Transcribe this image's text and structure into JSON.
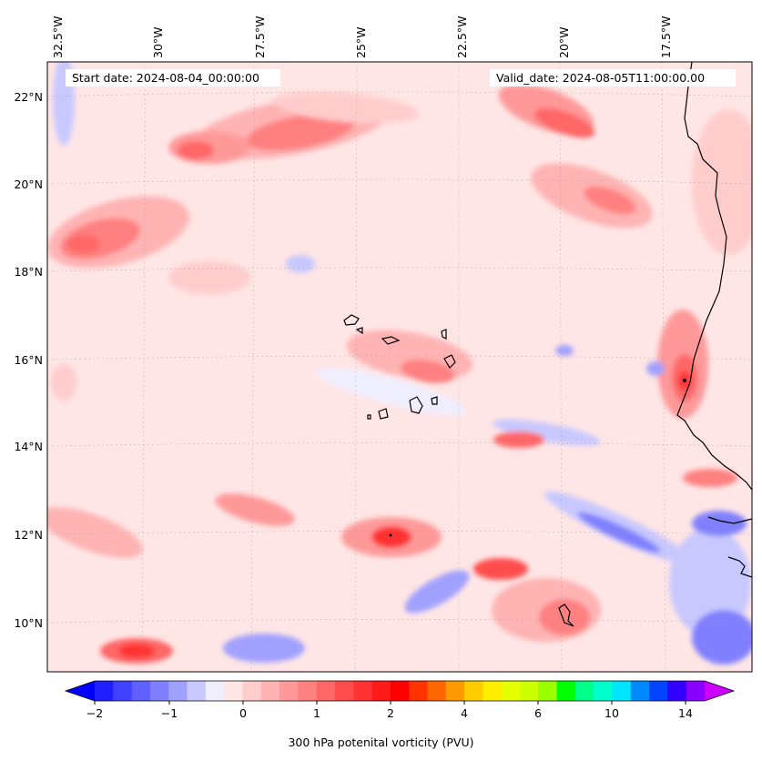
{
  "header": {
    "start": "Start date: 2024-08-04_00:00:00",
    "valid": "Valid_date: 2024-08-05T11:00:00.00"
  },
  "map": {
    "lon_labels": [
      "32.5°W",
      "30°W",
      "27.5°W",
      "25°W",
      "22.5°W",
      "20°W",
      "17.5°W"
    ],
    "lat_labels": [
      "22°N",
      "20°N",
      "18°N",
      "16°N",
      "14°N",
      "12°N",
      "10°N"
    ]
  },
  "colorbar": {
    "label": "300 hPa potenital vorticity (PVU)",
    "tick_labels": [
      "−2",
      "−1",
      "0",
      "1",
      "2",
      "4",
      "6",
      "10",
      "14"
    ],
    "colors": [
      "#0000ff",
      "#2020ff",
      "#4040ff",
      "#6060ff",
      "#8080ff",
      "#a0a0ff",
      "#c8c8ff",
      "#eeeeff",
      "#ffe6e6",
      "#ffcccc",
      "#ffb3b3",
      "#ff9999",
      "#ff8080",
      "#ff6666",
      "#ff4d4d",
      "#ff3333",
      "#ff1a1a",
      "#ff0000",
      "#ff3300",
      "#ff6600",
      "#ff9900",
      "#ffcc00",
      "#ffee00",
      "#e6ff00",
      "#ccff00",
      "#99ff00",
      "#00ff00",
      "#00ff88",
      "#00ffcc",
      "#00e5ff",
      "#0088ff",
      "#0044ff",
      "#3300ff",
      "#8800ff",
      "#cc00ff"
    ]
  }
}
